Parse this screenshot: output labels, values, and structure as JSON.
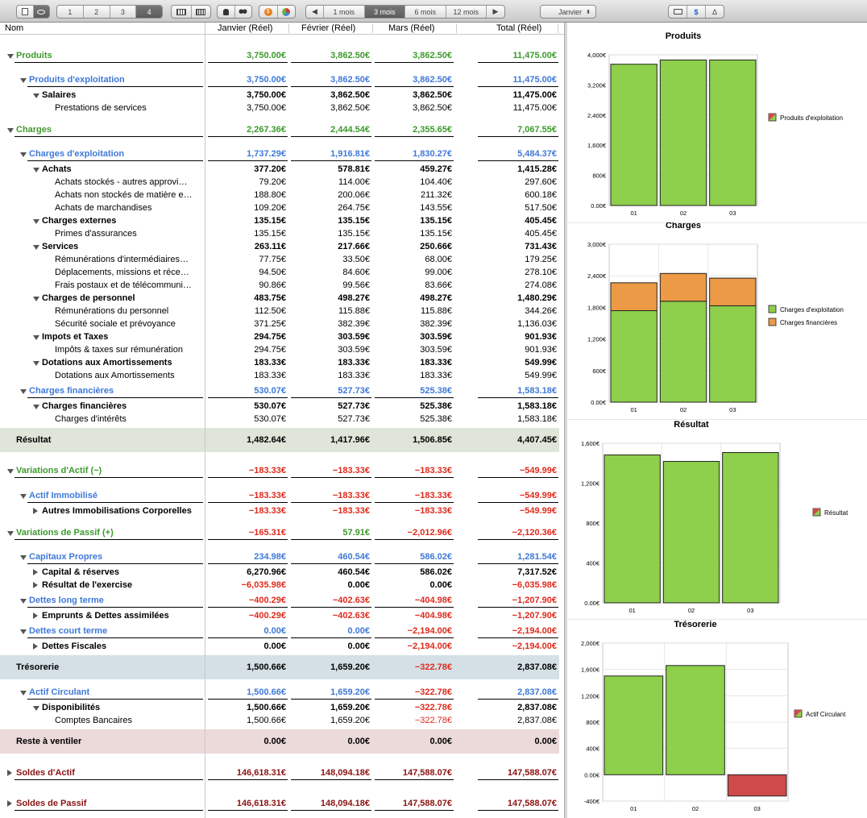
{
  "toolbar": {
    "pages": [
      "1",
      "2",
      "3",
      "4"
    ],
    "period_buttons": [
      "1 mois",
      "3 mois",
      "6 mois",
      "12 mois"
    ],
    "month_select": "Janvier",
    "currency_symbol": "$",
    "delta_symbol": "Δ"
  },
  "table": {
    "headers": {
      "name": "Nom",
      "c1": "Janvier (Réel)",
      "c2": "Février (Réel)",
      "c3": "Mars (Réel)",
      "c4": "Total (Réel)"
    },
    "rows": [
      {
        "id": "produits",
        "label": "Produits",
        "level": 0,
        "vals": [
          "3,750.00€",
          "3,862.50€",
          "3,862.50€",
          "11,475.00€"
        ]
      },
      {
        "id": "produits-exploitation",
        "label": "Produits d'exploitation",
        "level": 1,
        "vals": [
          "3,750.00€",
          "3,862.50€",
          "3,862.50€",
          "11,475.00€"
        ]
      },
      {
        "id": "salaires",
        "label": "Salaires",
        "level": 2,
        "vals": [
          "3,750.00€",
          "3,862.50€",
          "3,862.50€",
          "11,475.00€"
        ]
      },
      {
        "id": "prestations",
        "label": "Prestations de services",
        "level": 3,
        "vals": [
          "3,750.00€",
          "3,862.50€",
          "3,862.50€",
          "11,475.00€"
        ]
      },
      {
        "id": "charges",
        "label": "Charges",
        "level": 0,
        "vals": [
          "2,267.36€",
          "2,444.54€",
          "2,355.65€",
          "7,067.55€"
        ]
      },
      {
        "id": "charges-exploitation",
        "label": "Charges d'exploitation",
        "level": 1,
        "vals": [
          "1,737.29€",
          "1,916.81€",
          "1,830.27€",
          "5,484.37€"
        ]
      },
      {
        "id": "achats",
        "label": "Achats",
        "level": 2,
        "vals": [
          "377.20€",
          "578.81€",
          "459.27€",
          "1,415.28€"
        ]
      },
      {
        "id": "achats-stockes",
        "label": "Achats stockés - autres approvi…",
        "level": 3,
        "vals": [
          "79.20€",
          "114.00€",
          "104.40€",
          "297.60€"
        ]
      },
      {
        "id": "achats-non-stockes",
        "label": "Achats non stockés de matière e…",
        "level": 3,
        "vals": [
          "188.80€",
          "200.06€",
          "211.32€",
          "600.18€"
        ]
      },
      {
        "id": "achats-marchandises",
        "label": "Achats de marchandises",
        "level": 3,
        "vals": [
          "109.20€",
          "264.75€",
          "143.55€",
          "517.50€"
        ]
      },
      {
        "id": "charges-externes",
        "label": "Charges externes",
        "level": 2,
        "vals": [
          "135.15€",
          "135.15€",
          "135.15€",
          "405.45€"
        ]
      },
      {
        "id": "primes",
        "label": "Primes d'assurances",
        "level": 3,
        "vals": [
          "135.15€",
          "135.15€",
          "135.15€",
          "405.45€"
        ]
      },
      {
        "id": "services",
        "label": "Services",
        "level": 2,
        "vals": [
          "263.11€",
          "217.66€",
          "250.66€",
          "731.43€"
        ]
      },
      {
        "id": "remunerations-inter",
        "label": "Rémunérations d'intermédiaires…",
        "level": 3,
        "vals": [
          "77.75€",
          "33.50€",
          "68.00€",
          "179.25€"
        ]
      },
      {
        "id": "deplacements",
        "label": "Déplacements, missions et réce…",
        "level": 3,
        "vals": [
          "94.50€",
          "84.60€",
          "99.00€",
          "278.10€"
        ]
      },
      {
        "id": "frais-postaux",
        "label": "Frais postaux et de télécommuni…",
        "level": 3,
        "vals": [
          "90.86€",
          "99.56€",
          "83.66€",
          "274.08€"
        ]
      },
      {
        "id": "charges-personnel",
        "label": "Charges de personnel",
        "level": 2,
        "vals": [
          "483.75€",
          "498.27€",
          "498.27€",
          "1,480.29€"
        ]
      },
      {
        "id": "remun-personnel",
        "label": "Rémunérations du personnel",
        "level": 3,
        "vals": [
          "112.50€",
          "115.88€",
          "115.88€",
          "344.26€"
        ]
      },
      {
        "id": "securite-sociale",
        "label": "Sécurité sociale et prévoyance",
        "level": 3,
        "vals": [
          "371.25€",
          "382.39€",
          "382.39€",
          "1,136.03€"
        ]
      },
      {
        "id": "impots-taxes",
        "label": "Impots et Taxes",
        "level": 2,
        "vals": [
          "294.75€",
          "303.59€",
          "303.59€",
          "901.93€"
        ]
      },
      {
        "id": "impots-remun",
        "label": "Impôts & taxes sur rémunération",
        "level": 3,
        "vals": [
          "294.75€",
          "303.59€",
          "303.59€",
          "901.93€"
        ]
      },
      {
        "id": "dotations",
        "label": "Dotations aux Amortissements",
        "level": 2,
        "vals": [
          "183.33€",
          "183.33€",
          "183.33€",
          "549.99€"
        ]
      },
      {
        "id": "dotations-sub",
        "label": "Dotations aux Amortissements",
        "level": 3,
        "vals": [
          "183.33€",
          "183.33€",
          "183.33€",
          "549.99€"
        ]
      },
      {
        "id": "charges-financieres",
        "label": "Charges financières",
        "level": 1,
        "vals": [
          "530.07€",
          "527.73€",
          "525.38€",
          "1,583.18€"
        ]
      },
      {
        "id": "charges-financieres-2",
        "label": "Charges financières",
        "level": 2,
        "vals": [
          "530.07€",
          "527.73€",
          "525.38€",
          "1,583.18€"
        ]
      },
      {
        "id": "charges-interets",
        "label": "Charges d'intérêts",
        "level": 3,
        "vals": [
          "530.07€",
          "527.73€",
          "525.38€",
          "1,583.18€"
        ]
      },
      {
        "id": "resultat",
        "label": "Résultat",
        "level": "band",
        "vals": [
          "1,482.64€",
          "1,417.96€",
          "1,506.85€",
          "4,407.45€"
        ]
      },
      {
        "id": "variations-actif",
        "label": "Variations d'Actif (−)",
        "level": 0,
        "vals": [
          "−183.33€",
          "−183.33€",
          "−183.33€",
          "−549.99€"
        ]
      },
      {
        "id": "actif-immobilise",
        "label": "Actif Immobilisé",
        "level": 1,
        "vals": [
          "−183.33€",
          "−183.33€",
          "−183.33€",
          "−549.99€"
        ]
      },
      {
        "id": "autres-immo",
        "label": "Autres Immobilisations Corporelles",
        "level": 2,
        "vals": [
          "−183.33€",
          "−183.33€",
          "−183.33€",
          "−549.99€"
        ]
      },
      {
        "id": "variations-passif",
        "label": "Variations de Passif (+)",
        "level": 0,
        "vals": [
          "−165.31€",
          "57.91€",
          "−2,012.96€",
          "−2,120.36€"
        ]
      },
      {
        "id": "capitaux-propres",
        "label": "Capitaux Propres",
        "level": 1,
        "vals": [
          "234.98€",
          "460.54€",
          "586.02€",
          "1,281.54€"
        ]
      },
      {
        "id": "capital-reserves",
        "label": "Capital & réserves",
        "level": 2,
        "vals": [
          "6,270.96€",
          "460.54€",
          "586.02€",
          "7,317.52€"
        ]
      },
      {
        "id": "resultat-exercice",
        "label": "Résultat de l'exercise",
        "level": 2,
        "vals": [
          "−6,035.98€",
          "0.00€",
          "0.00€",
          "−6,035.98€"
        ]
      },
      {
        "id": "dettes-long",
        "label": "Dettes long terme",
        "level": 1,
        "vals": [
          "−400.29€",
          "−402.63€",
          "−404.98€",
          "−1,207.90€"
        ]
      },
      {
        "id": "emprunts",
        "label": "Emprunts & Dettes assimilées",
        "level": 2,
        "vals": [
          "−400.29€",
          "−402.63€",
          "−404.98€",
          "−1,207.90€"
        ]
      },
      {
        "id": "dettes-court",
        "label": "Dettes court terme",
        "level": 1,
        "vals": [
          "0.00€",
          "0.00€",
          "−2,194.00€",
          "−2,194.00€"
        ]
      },
      {
        "id": "dettes-fiscales",
        "label": "Dettes Fiscales",
        "level": 2,
        "vals": [
          "0.00€",
          "0.00€",
          "−2,194.00€",
          "−2,194.00€"
        ]
      },
      {
        "id": "tresorerie",
        "label": "Trésorerie",
        "level": "band",
        "vals": [
          "1,500.66€",
          "1,659.20€",
          "−322.78€",
          "2,837.08€"
        ]
      },
      {
        "id": "actif-circulant",
        "label": "Actif Circulant",
        "level": 1,
        "vals": [
          "1,500.66€",
          "1,659.20€",
          "−322.78€",
          "2,837.08€"
        ]
      },
      {
        "id": "disponibilites",
        "label": "Disponibilités",
        "level": 2,
        "vals": [
          "1,500.66€",
          "1,659.20€",
          "−322.78€",
          "2,837.08€"
        ]
      },
      {
        "id": "comptes-bancaires",
        "label": "Comptes Bancaires",
        "level": 3,
        "vals": [
          "1,500.66€",
          "1,659.20€",
          "−322.78€",
          "2,837.08€"
        ]
      },
      {
        "id": "reste-ventiler",
        "label": "Reste à ventiler",
        "level": "band",
        "vals": [
          "0.00€",
          "0.00€",
          "0.00€",
          "0.00€"
        ]
      },
      {
        "id": "soldes-actif",
        "label": "Soldes d'Actif",
        "level": 0,
        "vals": [
          "146,618.31€",
          "148,094.18€",
          "147,588.07€",
          "147,588.07€"
        ]
      },
      {
        "id": "soldes-passif",
        "label": "Soldes de Passif",
        "level": 0,
        "vals": [
          "146,618.31€",
          "148,094.18€",
          "147,588.07€",
          "147,588.07€"
        ]
      }
    ]
  },
  "colors": {
    "green": "#3c9a2c",
    "blue": "#3f79d8",
    "red": "#e02a1c",
    "darkred": "#8b1212",
    "bar_green": "#8ecf4b",
    "bar_orange": "#ec9a45",
    "bar_red": "#cf4a4a",
    "band_resultat": "#dfe5d8",
    "band_tresorerie": "#d5e0e6",
    "band_reste": "#ecd9d9"
  },
  "chart_data": [
    {
      "type": "bar",
      "title": "Produits",
      "categories": [
        "01",
        "02",
        "03"
      ],
      "series": [
        {
          "name": "Produits d'exploitation",
          "values": [
            3750,
            3862.5,
            3862.5
          ]
        }
      ],
      "ylim": [
        0,
        4000
      ],
      "yticks": [
        "0.00€",
        "800€",
        "1,600€",
        "2,400€",
        "3,200€",
        "4,000€"
      ],
      "legend": "right"
    },
    {
      "type": "bar",
      "stacked": true,
      "title": "Charges",
      "categories": [
        "01",
        "02",
        "03"
      ],
      "series": [
        {
          "name": "Charges d'exploitation",
          "values": [
            1737.29,
            1916.81,
            1830.27
          ]
        },
        {
          "name": "Charges financières",
          "values": [
            530.07,
            527.73,
            525.38
          ]
        }
      ],
      "ylim": [
        0,
        3000
      ],
      "yticks": [
        "0.00€",
        "600€",
        "1,200€",
        "1,800€",
        "2,400€",
        "3,000€"
      ],
      "legend": "right"
    },
    {
      "type": "bar",
      "title": "Résultat",
      "categories": [
        "01",
        "02",
        "03"
      ],
      "series": [
        {
          "name": "Résultat",
          "values": [
            1482.64,
            1417.96,
            1506.85
          ]
        }
      ],
      "ylim": [
        0,
        1600
      ],
      "yticks": [
        "0.00€",
        "400€",
        "800€",
        "1,200€",
        "1,600€"
      ],
      "legend": "right"
    },
    {
      "type": "bar",
      "title": "Trésorerie",
      "categories": [
        "01",
        "02",
        "03"
      ],
      "series": [
        {
          "name": "Actif Circulant",
          "values": [
            1500.66,
            1659.2,
            -322.78
          ]
        }
      ],
      "ylim": [
        -400,
        2000
      ],
      "yticks": [
        "-400€",
        "0.00€",
        "400€",
        "800€",
        "1,200€",
        "1,600€",
        "2,000€"
      ],
      "legend": "right"
    }
  ]
}
